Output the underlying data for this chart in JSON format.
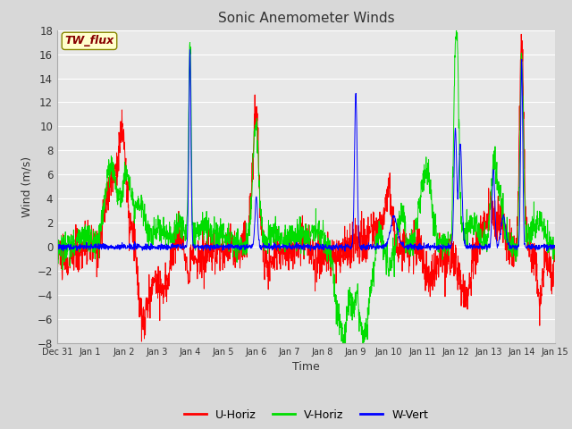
{
  "title": "Sonic Anemometer Winds",
  "xlabel": "Time",
  "ylabel": "Wind (m/s)",
  "ylim": [
    -8,
    18
  ],
  "yticks": [
    -8,
    -6,
    -4,
    -2,
    0,
    2,
    4,
    6,
    8,
    10,
    12,
    14,
    16,
    18
  ],
  "fig_bg_color": "#d8d8d8",
  "plot_bg_color": "#e8e8e8",
  "grid_color": "#ffffff",
  "series_colors": {
    "U-Horiz": "#ff0000",
    "V-Horiz": "#00dd00",
    "W-Vert": "#0000ff"
  },
  "line_width": 0.7,
  "annotation_text": "TW_flux",
  "annotation_text_color": "#880000",
  "annotation_box_color": "#ffffcc",
  "annotation_box_edge": "#888800",
  "tick_labels": [
    "Dec 31",
    "Jan 1",
    "Jan 2",
    "Jan 3",
    "Jan 4",
    "Jan 5",
    "Jan 6",
    "Jan 7",
    "Jan 8",
    "Jan 9",
    "Jan 10",
    "Jan 11",
    "Jan 12",
    "Jan 13",
    "Jan 14",
    "Jan 15"
  ],
  "seed": 42
}
